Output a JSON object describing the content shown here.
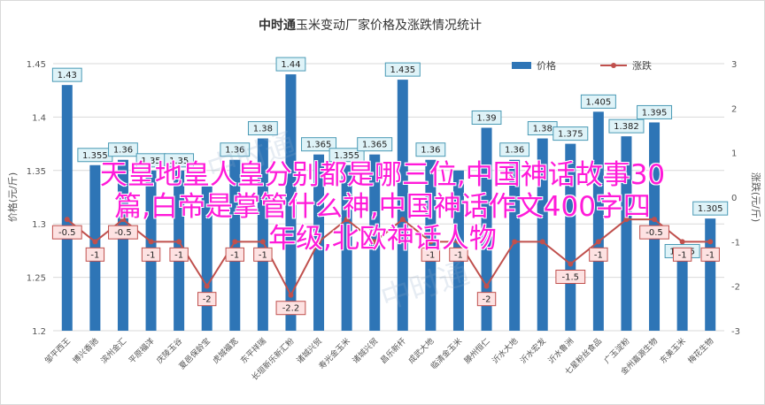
{
  "chart_data": {
    "type": "bar+line",
    "title_prefix": "中时通",
    "title_rest": "玉米变动厂家价格及涨跌情况统计",
    "ylabel_left": "价格(元/斤)",
    "ylabel_right": "涨跌(元/斤)",
    "ylim_left": [
      1.2,
      1.45
    ],
    "ylim_right": [
      -3,
      3
    ],
    "yticks_left": [
      "1.45",
      "1.4",
      "1.35",
      "1.3",
      "1.25",
      "1.2"
    ],
    "yticks_right": [
      "3",
      "2",
      "1",
      "0",
      "-1",
      "-2",
      "-3"
    ],
    "legend": {
      "bar": "价格",
      "line": "涨跌",
      "position": "top-right"
    },
    "bar_color": "#2e75b6",
    "line_color": "#c0504d",
    "categories": [
      "邹平西王",
      "博兴香驰",
      "滨州金汇",
      "平原福洋",
      "庆陵玉谷",
      "夏邑保龄宝",
      "虎城福宽",
      "东平祥瑞",
      "长垣新乐新汇粉",
      "诸城兴贸",
      "寿光金玉米",
      "诸城兴贸",
      "昌乐新杆",
      "成武大地",
      "临清金玉米",
      "滕州恒仁",
      "沂水大地",
      "沂水宏发",
      "沂水鲁洲",
      "七星粉丝食品",
      "广玉淀粉",
      "金州嘉源生物",
      "东美玉米",
      "梅花生物"
    ],
    "prices": [
      1.43,
      1.355,
      1.36,
      1.35,
      1.35,
      1.335,
      1.36,
      1.38,
      1.44,
      1.365,
      1.355,
      1.365,
      1.435,
      1.36,
      1.35,
      1.39,
      1.36,
      1.38,
      1.375,
      1.405,
      1.382,
      1.395,
      1.265,
      1.305
    ],
    "price_labels": [
      "1.43",
      "1.355",
      "1.36",
      "1.35",
      "1.35",
      "",
      "1.36",
      "1.38",
      "1.44",
      "1.365",
      "1.355",
      "1.365",
      "1.435",
      "1.36",
      "",
      "1.39",
      "1.36",
      "1.38",
      "1.375",
      "1.405",
      "1.382",
      "1.395",
      "1.265",
      "1.305"
    ],
    "changes": [
      -0.5,
      -1,
      -0.5,
      -1,
      -1,
      -2,
      -1,
      -1,
      -2.2,
      -1,
      -0.5,
      -1,
      -0.5,
      -1,
      -1,
      -2,
      -1,
      -1,
      -1.5,
      -1,
      -0.5,
      -0.5,
      -1,
      -1
    ],
    "change_labels": [
      "-0.5",
      "-1",
      "-0.5",
      "-1",
      "-1",
      "-2",
      "-1",
      "-1",
      "-2.2",
      "",
      "",
      "",
      "",
      "-1",
      "-1",
      "-2",
      "",
      "",
      "-1.5",
      "-1",
      "",
      "-0.5",
      "-1",
      "-1"
    ]
  },
  "overlay": {
    "line1": "天皇地皇人皇分别都是哪三位,中国神话故事30",
    "line2": "篇,白帝是掌管什么神,中国神话作文400字四",
    "line3": "年级,北欧神话人物"
  }
}
